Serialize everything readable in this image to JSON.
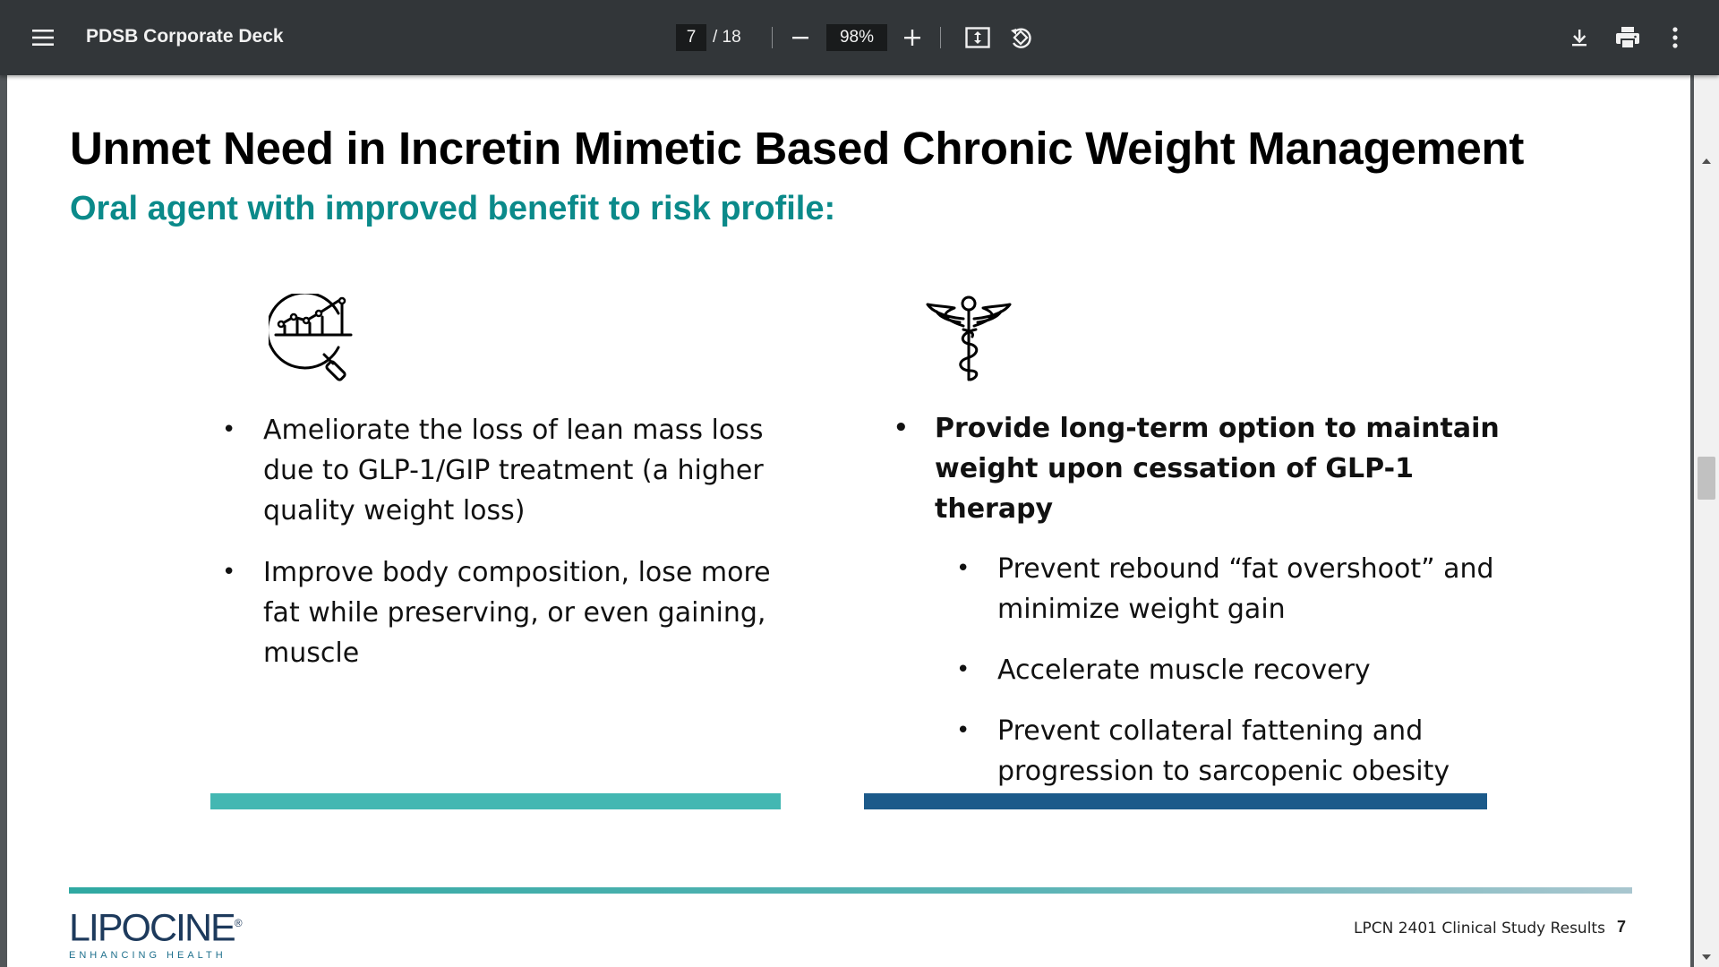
{
  "toolbar": {
    "doc_title": "PDSB Corporate Deck",
    "page_current": "7",
    "page_total": "/ 18",
    "zoom": "98%",
    "icons": [
      "menu-icon",
      "zoom-out-icon",
      "zoom-in-icon",
      "fit-page-icon",
      "rotate-icon",
      "download-icon",
      "print-icon",
      "more-icon"
    ]
  },
  "slide": {
    "title": "Unmet Need in Incretin Mimetic Based Chronic Weight Management",
    "subtitle": "Oral agent with improved benefit to risk profile:",
    "subtitle_color": "#0b8a8a",
    "left_icon": "chart-magnifier-icon",
    "right_icon": "caduceus-icon",
    "left_bullets": [
      "Ameliorate the loss of lean mass loss due to GLP-1/GIP treatment (a higher quality weight loss)",
      "Improve body composition, lose more fat while preserving, or even gaining, muscle"
    ],
    "right_main_bullet": "Provide long-term option to maintain weight upon cessation of GLP-1 therapy",
    "right_sub_bullets": [
      "Prevent rebound “fat overshoot” and minimize weight gain",
      "Accelerate muscle recovery",
      "Prevent collateral fattening and progression to sarcopenic obesity"
    ],
    "left_bar_color": "#43b7b2",
    "right_bar_color": "#1c5a8a"
  },
  "footer": {
    "logo_text": "LIPOCINE",
    "logo_mark": "®",
    "logo_tagline": "ENHANCING HEALTH",
    "caption": "LPCN 2401 Clinical Study Results",
    "page_number": "7"
  }
}
